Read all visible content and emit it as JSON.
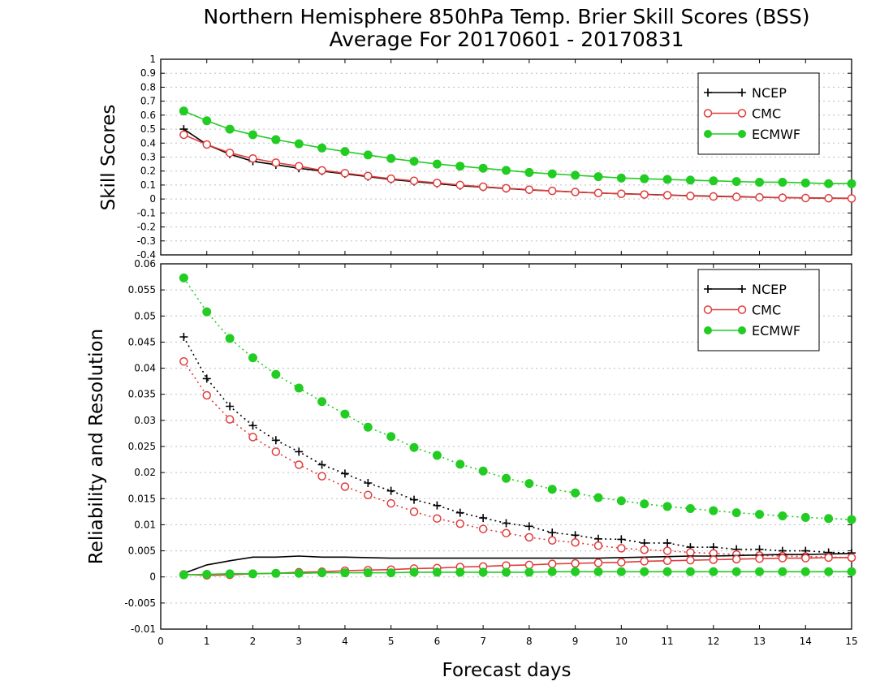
{
  "title": {
    "line1": "Northern Hemisphere 850hPa Temp. Brier Skill Scores (BSS)",
    "line2": "Average For 20170601 - 20170831"
  },
  "xlabel": "Forecast days",
  "colors": {
    "NCEP": "#000000",
    "CMC": "#e03c3c",
    "ECMWF": "#22cc22",
    "grid": "#bdbdbd"
  },
  "chart_data": [
    {
      "type": "line",
      "panel": "top",
      "ylabel": "Skill Scores",
      "xlim": [
        0,
        15
      ],
      "ylim": [
        -0.4,
        1
      ],
      "yticks": [
        -0.4,
        -0.3,
        -0.2,
        -0.1,
        0,
        0.1,
        0.2,
        0.3,
        0.4,
        0.5,
        0.6,
        0.7,
        0.8,
        0.9,
        1
      ],
      "xticks": [
        0,
        1,
        2,
        3,
        4,
        5,
        6,
        7,
        8,
        9,
        10,
        11,
        12,
        13,
        14,
        15
      ],
      "grid": "horizontal dotted",
      "legend_position": "top-right",
      "legend": [
        "NCEP",
        "CMC",
        "ECMWF"
      ],
      "x": [
        0.5,
        1,
        1.5,
        2,
        2.5,
        3,
        3.5,
        4,
        4.5,
        5,
        5.5,
        6,
        6.5,
        7,
        7.5,
        8,
        8.5,
        9,
        9.5,
        10,
        10.5,
        11,
        11.5,
        12,
        12.5,
        13,
        13.5,
        14,
        14.5,
        15
      ],
      "series": [
        {
          "name": "NCEP",
          "marker": "plus",
          "line": "solid",
          "values": [
            0.5,
            0.39,
            0.32,
            0.27,
            0.245,
            0.22,
            0.2,
            0.18,
            0.16,
            0.14,
            0.125,
            0.11,
            0.095,
            0.085,
            0.075,
            0.065,
            0.058,
            0.05,
            0.043,
            0.038,
            0.033,
            0.028,
            0.024,
            0.02,
            0.017,
            0.013,
            0.01,
            0.008,
            0.006,
            0.005
          ]
        },
        {
          "name": "CMC",
          "marker": "circle-open",
          "line": "solid",
          "values": [
            0.46,
            0.39,
            0.33,
            0.29,
            0.26,
            0.235,
            0.205,
            0.185,
            0.165,
            0.145,
            0.13,
            0.115,
            0.1,
            0.088,
            0.077,
            0.067,
            0.058,
            0.05,
            0.043,
            0.037,
            0.032,
            0.027,
            0.022,
            0.018,
            0.015,
            0.012,
            0.009,
            0.007,
            0.005,
            0.004
          ]
        },
        {
          "name": "ECMWF",
          "marker": "circle-filled",
          "line": "solid",
          "values": [
            0.63,
            0.56,
            0.5,
            0.46,
            0.425,
            0.395,
            0.365,
            0.34,
            0.315,
            0.29,
            0.27,
            0.25,
            0.235,
            0.22,
            0.205,
            0.19,
            0.18,
            0.17,
            0.16,
            0.15,
            0.145,
            0.14,
            0.135,
            0.13,
            0.125,
            0.12,
            0.12,
            0.115,
            0.11,
            0.11
          ]
        }
      ]
    },
    {
      "type": "line",
      "panel": "bottom",
      "ylabel": "Reliability and Resolution",
      "xlim": [
        0,
        15
      ],
      "ylim": [
        -0.01,
        0.06
      ],
      "yticks": [
        -0.01,
        -0.005,
        0,
        0.005,
        0.01,
        0.015,
        0.02,
        0.025,
        0.03,
        0.035,
        0.04,
        0.045,
        0.05,
        0.055,
        0.06
      ],
      "xticks": [
        0,
        1,
        2,
        3,
        4,
        5,
        6,
        7,
        8,
        9,
        10,
        11,
        12,
        13,
        14,
        15
      ],
      "grid": "horizontal dotted",
      "legend_position": "top-right",
      "legend": [
        "NCEP",
        "CMC",
        "ECMWF"
      ],
      "x": [
        0.5,
        1,
        1.5,
        2,
        2.5,
        3,
        3.5,
        4,
        4.5,
        5,
        5.5,
        6,
        6.5,
        7,
        7.5,
        8,
        8.5,
        9,
        9.5,
        10,
        10.5,
        11,
        11.5,
        12,
        12.5,
        13,
        13.5,
        14,
        14.5,
        15
      ],
      "series": [
        {
          "name": "NCEP",
          "marker": "plus",
          "line": "dotted",
          "values": [
            0.046,
            0.038,
            0.0327,
            0.029,
            0.0262,
            0.024,
            0.0215,
            0.0198,
            0.018,
            0.0165,
            0.0148,
            0.0137,
            0.0123,
            0.0113,
            0.0103,
            0.0097,
            0.0085,
            0.008,
            0.0073,
            0.0072,
            0.0065,
            0.0065,
            0.0057,
            0.0057,
            0.0053,
            0.0053,
            0.005,
            0.005,
            0.0047,
            0.0046
          ]
        },
        {
          "name": "CMC",
          "marker": "circle-open",
          "line": "dotted",
          "values": [
            0.0413,
            0.0348,
            0.0302,
            0.0268,
            0.024,
            0.0215,
            0.0193,
            0.0173,
            0.0157,
            0.0141,
            0.0125,
            0.0112,
            0.0102,
            0.0092,
            0.0084,
            0.0076,
            0.007,
            0.0066,
            0.006,
            0.0055,
            0.0052,
            0.005,
            0.0047,
            0.0045,
            0.0043,
            0.0041,
            0.004,
            0.0039,
            0.0038,
            0.0037
          ]
        },
        {
          "name": "ECMWF",
          "marker": "circle-filled",
          "line": "dotted",
          "values": [
            0.0573,
            0.0508,
            0.0457,
            0.042,
            0.0388,
            0.0362,
            0.0336,
            0.0312,
            0.0287,
            0.0269,
            0.0248,
            0.0233,
            0.0216,
            0.0203,
            0.0189,
            0.0179,
            0.0168,
            0.0161,
            0.0152,
            0.0146,
            0.014,
            0.0135,
            0.0131,
            0.0127,
            0.0123,
            0.012,
            0.0117,
            0.0114,
            0.0112,
            0.011
          ]
        },
        {
          "name": "NCEP",
          "marker": "none",
          "line": "solid",
          "values": [
            0.0007,
            0.0023,
            0.0031,
            0.0038,
            0.0038,
            0.004,
            0.0038,
            0.0038,
            0.0037,
            0.0036,
            0.0036,
            0.0036,
            0.0036,
            0.0036,
            0.0036,
            0.0036,
            0.0036,
            0.0036,
            0.0036,
            0.0037,
            0.0038,
            0.0039,
            0.004,
            0.004,
            0.0041,
            0.0042,
            0.0043,
            0.0043,
            0.0044,
            0.0045
          ]
        },
        {
          "name": "CMC",
          "marker": "circle-open",
          "line": "solid",
          "values": [
            0.0005,
            0.0003,
            0.0004,
            0.0006,
            0.0007,
            0.0009,
            0.001,
            0.0012,
            0.0013,
            0.0014,
            0.0016,
            0.0017,
            0.0019,
            0.002,
            0.0022,
            0.0023,
            0.0025,
            0.0026,
            0.0027,
            0.0028,
            0.003,
            0.0031,
            0.0032,
            0.0033,
            0.0034,
            0.0035,
            0.0036,
            0.0036,
            0.0037,
            0.0037
          ]
        },
        {
          "name": "ECMWF",
          "marker": "circle-filled",
          "line": "solid",
          "values": [
            0.0004,
            0.0005,
            0.0006,
            0.0006,
            0.0007,
            0.0007,
            0.0008,
            0.0008,
            0.0008,
            0.0008,
            0.0009,
            0.0009,
            0.0009,
            0.0009,
            0.0009,
            0.0009,
            0.001,
            0.001,
            0.001,
            0.001,
            0.001,
            0.001,
            0.001,
            0.001,
            0.001,
            0.001,
            0.001,
            0.001,
            0.001,
            0.001
          ]
        }
      ]
    }
  ]
}
